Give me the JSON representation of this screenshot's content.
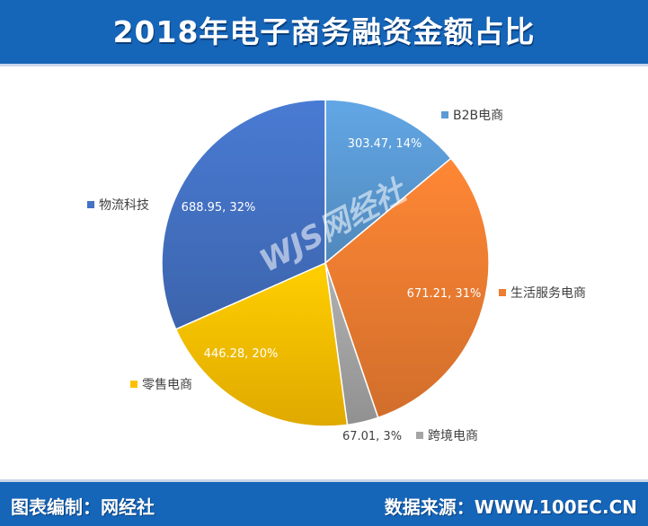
{
  "title": "2018年电子商务融资金额占比",
  "footer": {
    "left": "图表编制：网经社",
    "right": "数据来源：WWW.100EC.CN"
  },
  "watermark": "WJS网经社",
  "chart_data": {
    "type": "pie",
    "start_angle_deg": 0,
    "direction": "clockwise",
    "series": [
      {
        "name": "B2B电商",
        "value": 303.47,
        "label": "303.47, 14%",
        "color": "#5b9bd5"
      },
      {
        "name": "生活服务电商",
        "value": 671.21,
        "label": "671.21, 31%",
        "color": "#ed7d31"
      },
      {
        "name": "跨境电商",
        "value": 67.01,
        "label": "67.01, 3%",
        "color": "#a5a5a5"
      },
      {
        "name": "零售电商",
        "value": 446.28,
        "label": "446.28, 20%",
        "color": "#ffc000"
      },
      {
        "name": "物流科技",
        "value": 688.95,
        "label": "688.95, 32%",
        "color": "#4472c4"
      }
    ]
  }
}
